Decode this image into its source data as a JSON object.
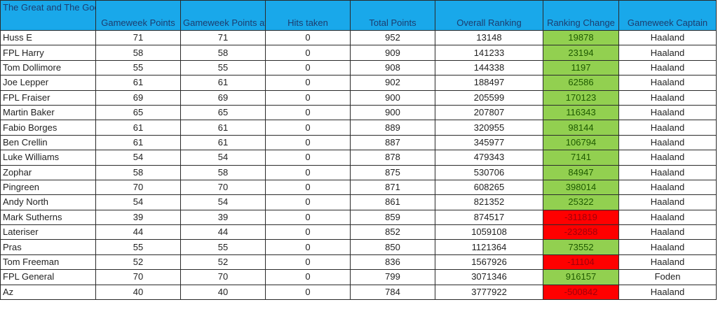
{
  "table": {
    "headers": [
      "The Great and The Good",
      "Gameweek Points",
      "Gameweek Points after Hits",
      "Hits taken",
      "Total Points",
      "Overall Ranking",
      "Ranking Change",
      "Gameweek Captain"
    ],
    "colors": {
      "header": "#19a8ea",
      "positive": "#92d050",
      "negative": "#ff0000"
    },
    "rows": [
      [
        "Huss E",
        "71",
        "71",
        "0",
        "952",
        "13148",
        "19878",
        "Haaland"
      ],
      [
        "FPL Harry",
        "58",
        "58",
        "0",
        "909",
        "141233",
        "23194",
        "Haaland"
      ],
      [
        "Tom Dollimore",
        "55",
        "55",
        "0",
        "908",
        "144338",
        "1197",
        "Haaland"
      ],
      [
        "Joe Lepper",
        "61",
        "61",
        "0",
        "902",
        "188497",
        "62586",
        "Haaland"
      ],
      [
        "FPL Fraiser",
        "69",
        "69",
        "0",
        "900",
        "205599",
        "170123",
        "Haaland"
      ],
      [
        "Martin Baker",
        "65",
        "65",
        "0",
        "900",
        "207807",
        "116343",
        "Haaland"
      ],
      [
        "Fabio Borges",
        "61",
        "61",
        "0",
        "889",
        "320955",
        "98144",
        "Haaland"
      ],
      [
        "Ben Crellin",
        "61",
        "61",
        "0",
        "887",
        "345977",
        "106794",
        "Haaland"
      ],
      [
        "Luke Williams",
        "54",
        "54",
        "0",
        "878",
        "479343",
        "7141",
        "Haaland"
      ],
      [
        "Zophar",
        "58",
        "58",
        "0",
        "875",
        "530706",
        "84947",
        "Haaland"
      ],
      [
        "Pingreen",
        "70",
        "70",
        "0",
        "871",
        "608265",
        "398014",
        "Haaland"
      ],
      [
        "Andy North",
        "54",
        "54",
        "0",
        "861",
        "821352",
        "25322",
        "Haaland"
      ],
      [
        "Mark Sutherns",
        "39",
        "39",
        "0",
        "859",
        "874517",
        "-311819",
        "Haaland"
      ],
      [
        "Lateriser",
        "44",
        "44",
        "0",
        "852",
        "1059108",
        "-232858",
        "Haaland"
      ],
      [
        "Pras",
        "55",
        "55",
        "0",
        "850",
        "1121364",
        "73552",
        "Haaland"
      ],
      [
        "Tom Freeman",
        "52",
        "52",
        "0",
        "836",
        "1567926",
        "-11104",
        "Haaland"
      ],
      [
        "FPL General",
        "70",
        "70",
        "0",
        "799",
        "3071346",
        "916157",
        "Foden"
      ],
      [
        "Az",
        "40",
        "40",
        "0",
        "784",
        "3777922",
        "-500842",
        "Haaland"
      ]
    ]
  }
}
